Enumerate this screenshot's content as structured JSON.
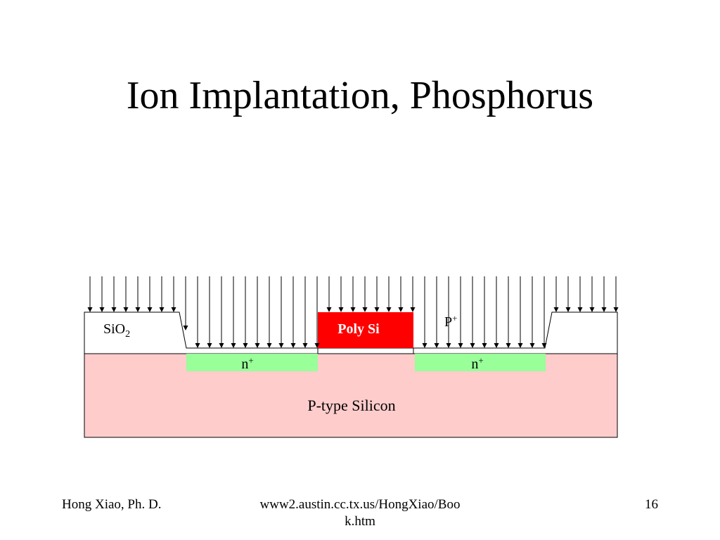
{
  "slide": {
    "title": "Ion Implantation, Phosphorus"
  },
  "diagram": {
    "sio2_label": "SiO",
    "sio2_subscript": "2",
    "poly_si_label": "Poly Si",
    "p_plus_label": "P",
    "p_plus_superscript": "+",
    "n_plus_left_label": "n",
    "n_plus_right_label": "n",
    "n_plus_superscript": "+",
    "substrate_label": "P-type Silicon",
    "colors": {
      "substrate": "#ffcccc",
      "n_plus_region": "#99ff99",
      "poly_si": "#ff0000",
      "poly_si_text": "#ffffff",
      "oxide": "#ffffff",
      "ion_arrows": "#000000"
    }
  },
  "footer": {
    "author": "Hong Xiao, Ph. D.",
    "url_line1": "www2.austin.cc.tx.us/HongXiao/Boo",
    "url_line2": "k.htm",
    "page_number": "16"
  }
}
